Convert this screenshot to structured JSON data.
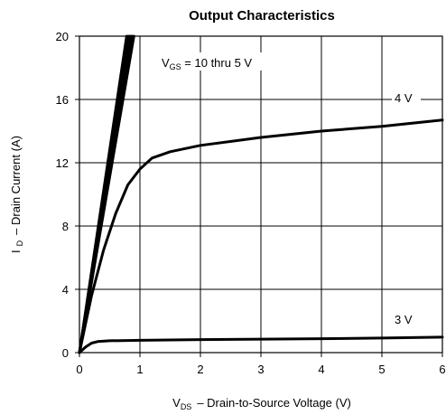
{
  "chart_data": {
    "type": "line",
    "title": "Output Characteristics",
    "xlabel": {
      "symbol": "V",
      "subscript": "DS",
      "text": "–  Drain-to-Source Voltage (V)"
    },
    "ylabel": {
      "symbol": "I",
      "subscript": "D",
      "text": "–  Drain Current (A)"
    },
    "xlim": [
      0,
      6
    ],
    "ylim": [
      0,
      20
    ],
    "xticks": [
      0,
      1,
      2,
      3,
      4,
      5,
      6
    ],
    "yticks": [
      0,
      4,
      8,
      12,
      16,
      20
    ],
    "grid": true,
    "series": [
      {
        "name": "",
        "x": [
          0,
          0.9
        ],
        "y": [
          0,
          20
        ]
      },
      {
        "name": "",
        "x": [
          0,
          0.87
        ],
        "y": [
          0,
          20
        ]
      },
      {
        "name": "",
        "x": [
          0,
          0.84
        ],
        "y": [
          0,
          20
        ]
      },
      {
        "name": "",
        "x": [
          0,
          0.81
        ],
        "y": [
          0,
          20
        ]
      },
      {
        "name": "",
        "x": [
          0,
          0.78
        ],
        "y": [
          0,
          20
        ]
      },
      {
        "name": "",
        "x": [
          0,
          0.2,
          0.4,
          0.6,
          0.8,
          1.0,
          1.2,
          1.5,
          2.0,
          3.0,
          4.0,
          5.0,
          6.0
        ],
        "y": [
          0,
          3.6,
          6.5,
          8.8,
          10.6,
          11.6,
          12.3,
          12.7,
          13.1,
          13.6,
          14.0,
          14.3,
          14.7
        ]
      },
      {
        "name": "",
        "x": [
          0,
          0.1,
          0.2,
          0.3,
          0.5,
          1.0,
          2.0,
          3.0,
          4.0,
          5.0,
          6.0
        ],
        "y": [
          0,
          0.35,
          0.6,
          0.7,
          0.75,
          0.78,
          0.82,
          0.85,
          0.88,
          0.92,
          0.98
        ]
      }
    ],
    "annotations": [
      {
        "id": "vgs",
        "symbol": "V",
        "subscript": "GS",
        "text": " = 10 thru 5 V"
      },
      {
        "id": "v4",
        "text": "4 V"
      },
      {
        "id": "v3",
        "text": "3 V"
      }
    ]
  }
}
